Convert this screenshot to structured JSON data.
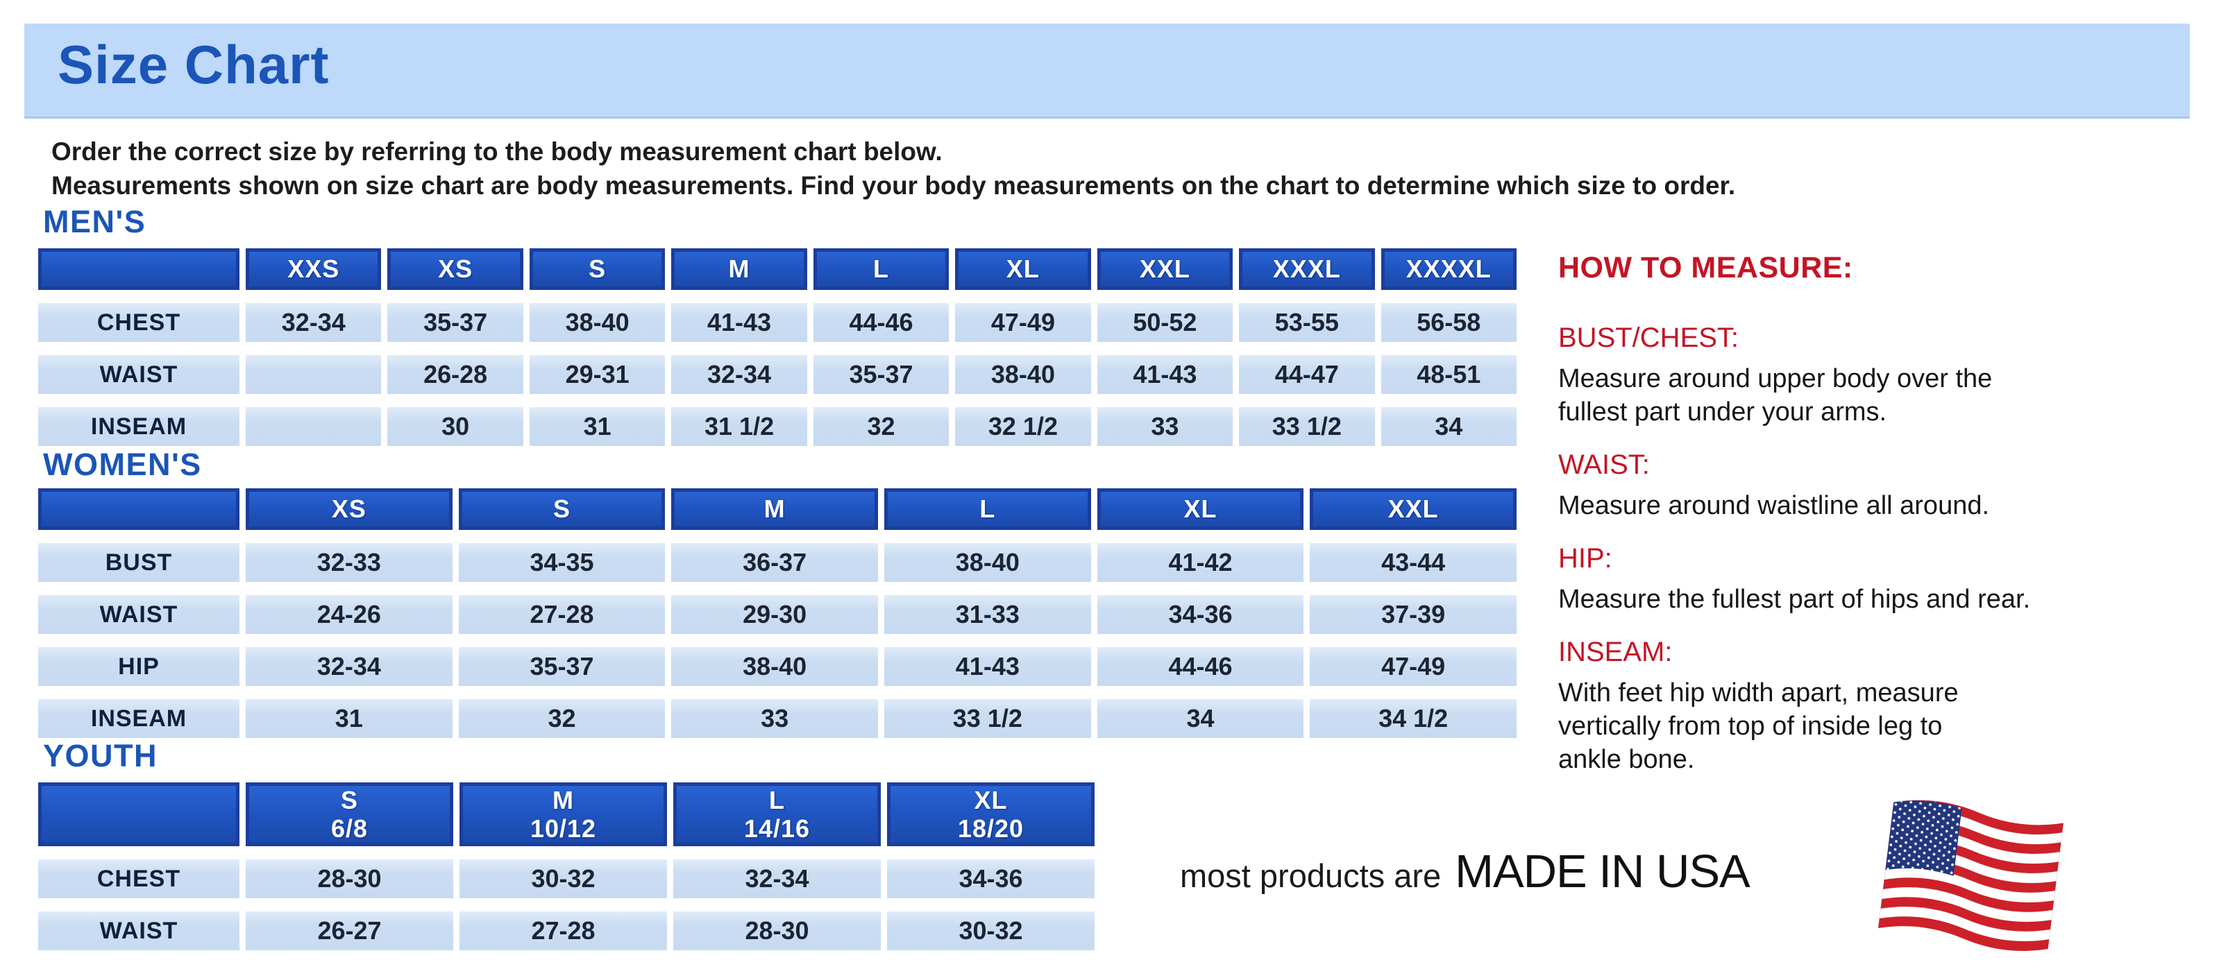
{
  "page": {
    "title": "Size Chart",
    "intro_line1": "Order the correct size by referring to the body measurement chart below.",
    "intro_line2": "Measurements shown on size chart are body measurements.  Find your body measurements on the chart to determine which size to order."
  },
  "colors": {
    "title_bar_bg": "#BED9F9",
    "heading_blue": "#1B55B8",
    "table_header_blue": "#1F53BE",
    "table_header_border": "#1A3E9C",
    "table_cell_blue": "#CBDDF2",
    "accent_red": "#C41425"
  },
  "tables": {
    "mens": {
      "heading": "MEN'S",
      "columns": [
        "XXS",
        "XS",
        "S",
        "M",
        "L",
        "XL",
        "XXL",
        "XXXL",
        "XXXXL"
      ],
      "rows": [
        {
          "label": "CHEST",
          "values": [
            "32-34",
            "35-37",
            "38-40",
            "41-43",
            "44-46",
            "47-49",
            "50-52",
            "53-55",
            "56-58"
          ]
        },
        {
          "label": "WAIST",
          "values": [
            "",
            "26-28",
            "29-31",
            "32-34",
            "35-37",
            "38-40",
            "41-43",
            "44-47",
            "48-51"
          ]
        },
        {
          "label": "INSEAM",
          "values": [
            "",
            "30",
            "31",
            "31 1/2",
            "32",
            "32 1/2",
            "33",
            "33 1/2",
            "34"
          ]
        }
      ]
    },
    "womens": {
      "heading": "WOMEN'S",
      "columns": [
        "XS",
        "S",
        "M",
        "L",
        "XL",
        "XXL"
      ],
      "rows": [
        {
          "label": "BUST",
          "values": [
            "32-33",
            "34-35",
            "36-37",
            "38-40",
            "41-42",
            "43-44"
          ]
        },
        {
          "label": "WAIST",
          "values": [
            "24-26",
            "27-28",
            "29-30",
            "31-33",
            "34-36",
            "37-39"
          ]
        },
        {
          "label": "HIP",
          "values": [
            "32-34",
            "35-37",
            "38-40",
            "41-43",
            "44-46",
            "47-49"
          ]
        },
        {
          "label": "INSEAM",
          "values": [
            "31",
            "32",
            "33",
            "33 1/2",
            "34",
            "34 1/2"
          ]
        }
      ]
    },
    "youth": {
      "heading": "YOUTH",
      "columns": [
        {
          "line1": "S",
          "line2": "6/8"
        },
        {
          "line1": "M",
          "line2": "10/12"
        },
        {
          "line1": "L",
          "line2": "14/16"
        },
        {
          "line1": "XL",
          "line2": "18/20"
        }
      ],
      "rows": [
        {
          "label": "CHEST",
          "values": [
            "28-30",
            "30-32",
            "32-34",
            "34-36"
          ]
        },
        {
          "label": "WAIST",
          "values": [
            "26-27",
            "27-28",
            "28-30",
            "30-32"
          ]
        }
      ]
    }
  },
  "how_to_measure": {
    "heading": "HOW TO MEASURE:",
    "items": [
      {
        "term": "BUST/CHEST:",
        "description": "Measure around upper body over the fullest part under your arms.",
        "lines": [
          "Measure around upper body over the",
          "fullest part under your arms."
        ]
      },
      {
        "term": "WAIST:",
        "description": "Measure around waistline all around.",
        "lines": [
          "Measure around waistline all around."
        ]
      },
      {
        "term": "HIP:",
        "description": "Measure the fullest part of hips and rear.",
        "lines": [
          "Measure the fullest part of hips and rear."
        ]
      },
      {
        "term": "INSEAM:",
        "description": "With feet hip width apart, measure vertically from top of inside leg to ankle bone.",
        "lines": [
          "With feet hip width apart, measure",
          "vertically from top of inside leg to",
          "ankle bone."
        ]
      }
    ]
  },
  "footer": {
    "made_in_prefix": "most products are",
    "made_in_main": "MADE IN USA",
    "flag_icon": "usa-flag-icon"
  }
}
